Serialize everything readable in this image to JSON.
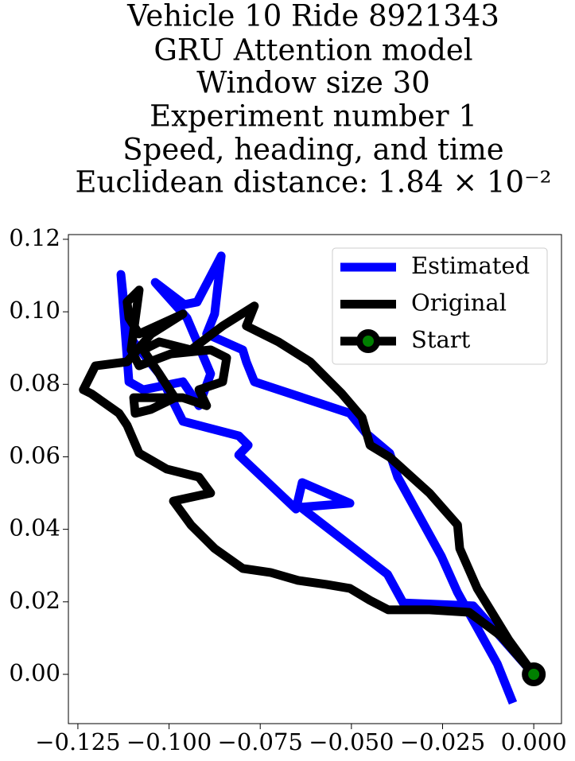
{
  "chart_data": {
    "type": "line",
    "title": [
      "Vehicle 10 Ride 8921343",
      "GRU Attention model",
      "Window size 30",
      "Experiment number 1",
      "Speed, heading, and time",
      "Euclidean distance: 1.84 × 10⁻²"
    ],
    "xlim": [
      -0.1276,
      0.0076
    ],
    "ylim": [
      -0.0136,
      0.1213
    ],
    "xticks": [
      {
        "value": -0.125,
        "label": "−0.125"
      },
      {
        "value": -0.1,
        "label": "−0.100"
      },
      {
        "value": -0.075,
        "label": "−0.075"
      },
      {
        "value": -0.05,
        "label": "−0.050"
      },
      {
        "value": -0.025,
        "label": "−0.025"
      },
      {
        "value": 0,
        "label": "0.000"
      }
    ],
    "yticks": [
      {
        "value": 0,
        "label": "0.00"
      },
      {
        "value": 0.02,
        "label": "0.02"
      },
      {
        "value": 0.04,
        "label": "0.04"
      },
      {
        "value": 0.06,
        "label": "0.06"
      },
      {
        "value": 0.08,
        "label": "0.08"
      },
      {
        "value": 0.1,
        "label": "0.10"
      },
      {
        "value": 0.12,
        "label": "0.12"
      }
    ],
    "legend": "upper right",
    "series": [
      {
        "name": "Estimated",
        "color": "blue",
        "x": [
          -0.0057,
          -0.01,
          -0.0209,
          -0.0253,
          -0.0373,
          -0.0395,
          -0.046,
          -0.0504,
          -0.0766,
          -0.0788,
          -0.0798,
          -0.0897,
          -0.0875,
          -0.0857,
          -0.0923,
          -0.0958,
          -0.1038,
          -0.0951,
          -0.0886,
          -0.0918,
          -0.0962,
          -0.1071,
          -0.111,
          -0.1132,
          -0.1115,
          -0.1027,
          -0.0962,
          -0.0809,
          -0.0783,
          -0.0809,
          -0.0652,
          -0.0635,
          -0.0504,
          -0.0639,
          -0.0401,
          -0.0358,
          -0.0166,
          0
        ],
        "values": [
          -0.0079,
          0.0029,
          0.0226,
          0.0325,
          0.0544,
          0.061,
          0.0665,
          0.072,
          0.0807,
          0.0862,
          0.0895,
          0.0939,
          0.0994,
          0.1154,
          0.1027,
          0.102,
          0.1081,
          0.0983,
          0.0829,
          0.0741,
          0.0807,
          0.0785,
          0.0807,
          0.1103,
          0.0939,
          0.0829,
          0.0698,
          0.0658,
          0.0632,
          0.0605,
          0.0456,
          0.0529,
          0.0472,
          0.0461,
          0.0276,
          0.0197,
          0.0189,
          0
        ]
      },
      {
        "name": "Original",
        "color": "black",
        "x": [
          0,
          -0.0068,
          -0.0155,
          -0.0203,
          -0.0209,
          -0.0286,
          -0.0395,
          -0.0449,
          -0.0471,
          -0.0526,
          -0.0613,
          -0.07,
          -0.0788,
          -0.0766,
          -0.0853,
          -0.094,
          -0.1027,
          -0.1071,
          -0.1027,
          -0.0984,
          -0.1049,
          -0.1093,
          -0.1097,
          -0.0962,
          -0.0897,
          -0.0918,
          -0.0853,
          -0.0842,
          -0.0886,
          -0.0995,
          -0.1082,
          -0.1104,
          -0.1082,
          -0.1115,
          -0.111,
          -0.1082,
          -0.0962,
          -0.1049,
          -0.1115,
          -0.1202,
          -0.1235,
          -0.1213,
          -0.1137,
          -0.1115,
          -0.1082,
          -0.1006,
          -0.0918,
          -0.0886,
          -0.0988,
          -0.094,
          -0.0875,
          -0.0798,
          -0.0722,
          -0.0646,
          -0.0569,
          -0.0504,
          -0.0449,
          -0.0399,
          -0.0286,
          -0.0177,
          -0.0089,
          0
        ],
        "values": [
          0,
          0.0094,
          0.0237,
          0.0347,
          0.0412,
          0.05,
          0.0599,
          0.0632,
          0.0709,
          0.0774,
          0.0862,
          0.0917,
          0.0961,
          0.1016,
          0.0961,
          0.0895,
          0.0917,
          0.0895,
          0.0829,
          0.0763,
          0.0731,
          0.072,
          0.0763,
          0.0763,
          0.0741,
          0.0785,
          0.0807,
          0.0873,
          0.0895,
          0.0884,
          0.0851,
          0.0895,
          0.106,
          0.1027,
          0.0983,
          0.0939,
          0.0994,
          0.0939,
          0.0862,
          0.0851,
          0.0785,
          0.0774,
          0.072,
          0.0687,
          0.061,
          0.0566,
          0.0544,
          0.05,
          0.0478,
          0.0412,
          0.0347,
          0.0292,
          0.0281,
          0.0259,
          0.0248,
          0.0237,
          0.0204,
          0.0178,
          0.0178,
          0.0171,
          0.0105,
          0
        ]
      },
      {
        "name": "Start",
        "color": "black",
        "marker_color": "green",
        "x": [
          0
        ],
        "values": [
          0
        ]
      }
    ]
  }
}
